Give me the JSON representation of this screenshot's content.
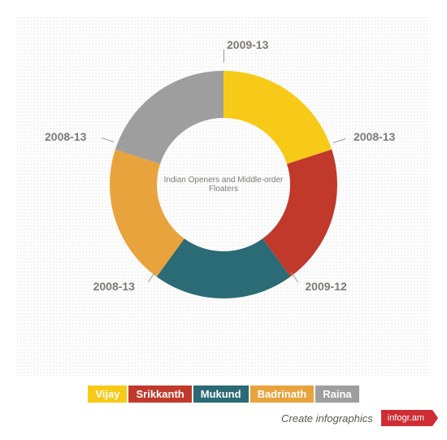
{
  "chart": {
    "type": "donut",
    "center_label": "Indian Openers and Middle-order Floaters",
    "center_label_fontsize": 10,
    "center_label_color": "#7d7b77",
    "outer_radius": 140,
    "inner_radius": 82,
    "background_color": "#fdfdfd",
    "dot_pattern_color": "#d9d9d9",
    "slice_label_fontsize": 14,
    "slice_label_color": "#7d7b77",
    "tick_color": "#9f9c97",
    "slices": [
      {
        "name": "Vijay",
        "label": "2009-13",
        "value": 20,
        "color": "#f7ca18"
      },
      {
        "name": "Srikkanth",
        "label": "2008-13",
        "value": 20,
        "color": "#c0392b"
      },
      {
        "name": "Mukund",
        "label": "2009-12",
        "value": 20,
        "color": "#2b6b76"
      },
      {
        "name": "Badrinath",
        "label": "2008-13",
        "value": 20,
        "color": "#e8a33d"
      },
      {
        "name": "Raina",
        "label": "2008-13",
        "value": 20,
        "color": "#9e9e9e"
      }
    ]
  },
  "legend": {
    "items": [
      {
        "label": "Vijay",
        "color": "#f7ca18"
      },
      {
        "label": "Srikkanth",
        "color": "#c0392b"
      },
      {
        "label": "Mukund",
        "color": "#2b6b76"
      },
      {
        "label": "Badrinath",
        "color": "#e8a33d"
      },
      {
        "label": "Raina",
        "color": "#9e9e9e"
      }
    ],
    "text_color": "#ffffff",
    "fontsize": 13
  },
  "footer": {
    "text": "Create infographics",
    "badge": "infogr.am",
    "badge_bg": "#cf2c36",
    "badge_text_color": "#ffffff"
  }
}
